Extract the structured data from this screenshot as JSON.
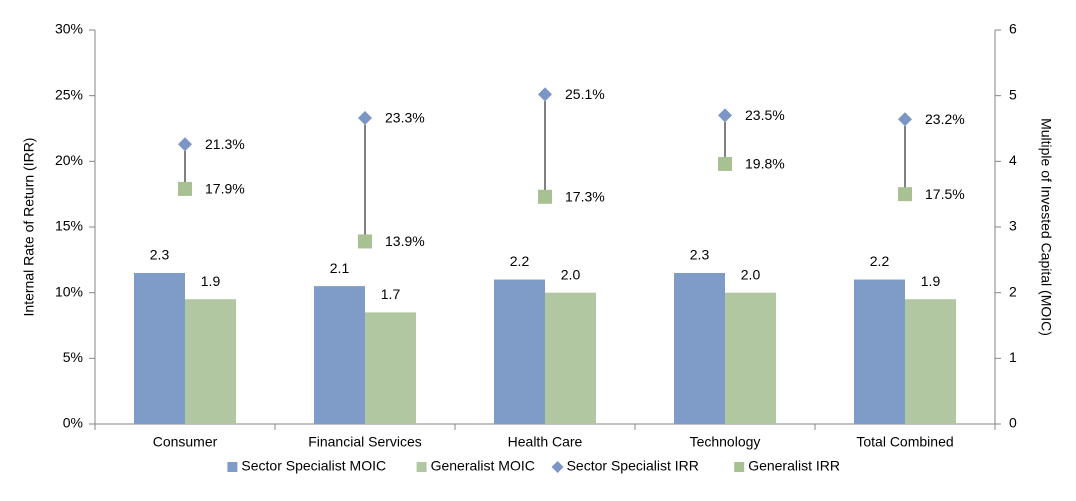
{
  "chart_data": {
    "type": "bar",
    "categories": [
      "Consumer",
      "Financial Services",
      "Health Care",
      "Technology",
      "Total Combined"
    ],
    "ylabel": "Internal Rate of Return (IRR)",
    "y2label": "Multiple of Invested Capital (MOIC)",
    "ylim": [
      0,
      30
    ],
    "yticks": [
      {
        "value": 0,
        "label": "0%"
      },
      {
        "value": 5,
        "label": "5%"
      },
      {
        "value": 10,
        "label": "10%"
      },
      {
        "value": 15,
        "label": "15%"
      },
      {
        "value": 20,
        "label": "20%"
      },
      {
        "value": 25,
        "label": "25%"
      },
      {
        "value": 30,
        "label": "30%"
      }
    ],
    "y2lim": [
      0,
      6
    ],
    "y2ticks": [
      0,
      1,
      2,
      3,
      4,
      5,
      6
    ],
    "grid": false,
    "legend": "bottom",
    "series": [
      {
        "name": "Sector Specialist MOIC",
        "type": "bar",
        "axis": "y2",
        "color": "#7f9cc8",
        "values": [
          2.3,
          2.1,
          2.2,
          2.3,
          2.2
        ],
        "value_labels": [
          "2.3",
          "2.1",
          "2.2",
          "2.3",
          "2.2"
        ]
      },
      {
        "name": "Generalist MOIC",
        "type": "bar",
        "axis": "y2",
        "color": "#b0c7a1",
        "values": [
          1.9,
          1.7,
          2.0,
          2.0,
          1.9
        ],
        "value_labels": [
          "1.9",
          "1.7",
          "2.0",
          "2.0",
          "1.9"
        ]
      },
      {
        "name": "Sector Specialist IRR",
        "type": "scatter",
        "marker": "diamond",
        "color": "#7b96c4",
        "values": [
          21.3,
          23.3,
          25.1,
          23.5,
          23.2
        ],
        "value_labels": [
          "21.3%",
          "23.3%",
          "25.1%",
          "23.5%",
          "23.2%"
        ]
      },
      {
        "name": "Generalist IRR",
        "type": "scatter",
        "marker": "square",
        "color": "#a8c193",
        "values": [
          17.9,
          13.9,
          17.3,
          19.8,
          17.5
        ],
        "value_labels": [
          "17.9%",
          "13.9%",
          "17.3%",
          "19.8%",
          "17.5%"
        ]
      }
    ]
  }
}
